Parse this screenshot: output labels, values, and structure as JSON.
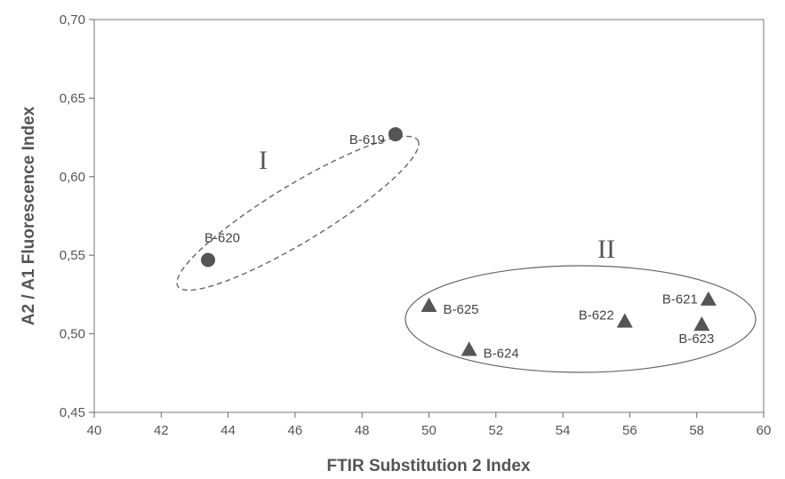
{
  "chart_data": {
    "type": "scatter",
    "title": "",
    "xlabel": "FTIR Substitution 2 Index",
    "ylabel": "A2 / A1 Fluorescence Index",
    "xlim": [
      40,
      60
    ],
    "ylim": [
      0.45,
      0.7
    ],
    "x_ticks": [
      40,
      42,
      44,
      46,
      48,
      50,
      52,
      54,
      56,
      58,
      60
    ],
    "x_tick_labels": [
      "40",
      "42",
      "44",
      "46",
      "48",
      "50",
      "52",
      "54",
      "56",
      "58",
      "60"
    ],
    "y_ticks": [
      0.45,
      0.5,
      0.55,
      0.6,
      0.65,
      0.7
    ],
    "y_tick_labels": [
      "0,45",
      "0,50",
      "0,55",
      "0,60",
      "0,65",
      "0,70"
    ],
    "grid": false,
    "points": [
      {
        "label": "B-619",
        "x": 49.0,
        "y": 0.627,
        "marker": "circle"
      },
      {
        "label": "B-620",
        "x": 43.4,
        "y": 0.547,
        "marker": "circle"
      },
      {
        "label": "B-625",
        "x": 50.0,
        "y": 0.518,
        "marker": "triangle"
      },
      {
        "label": "B-624",
        "x": 51.2,
        "y": 0.49,
        "marker": "triangle"
      },
      {
        "label": "B-622",
        "x": 55.85,
        "y": 0.508,
        "marker": "triangle"
      },
      {
        "label": "B-621",
        "x": 58.35,
        "y": 0.522,
        "marker": "triangle"
      },
      {
        "label": "B-623",
        "x": 58.15,
        "y": 0.506,
        "marker": "triangle"
      }
    ],
    "groups": [
      {
        "label": "I",
        "style": "dashed",
        "members": [
          "B-619",
          "B-620"
        ]
      },
      {
        "label": "II",
        "style": "solid",
        "members": [
          "B-621",
          "B-622",
          "B-623",
          "B-624",
          "B-625"
        ]
      }
    ],
    "colors": {
      "marker": "#555555",
      "axis": "#666666",
      "text": "#555555"
    }
  }
}
